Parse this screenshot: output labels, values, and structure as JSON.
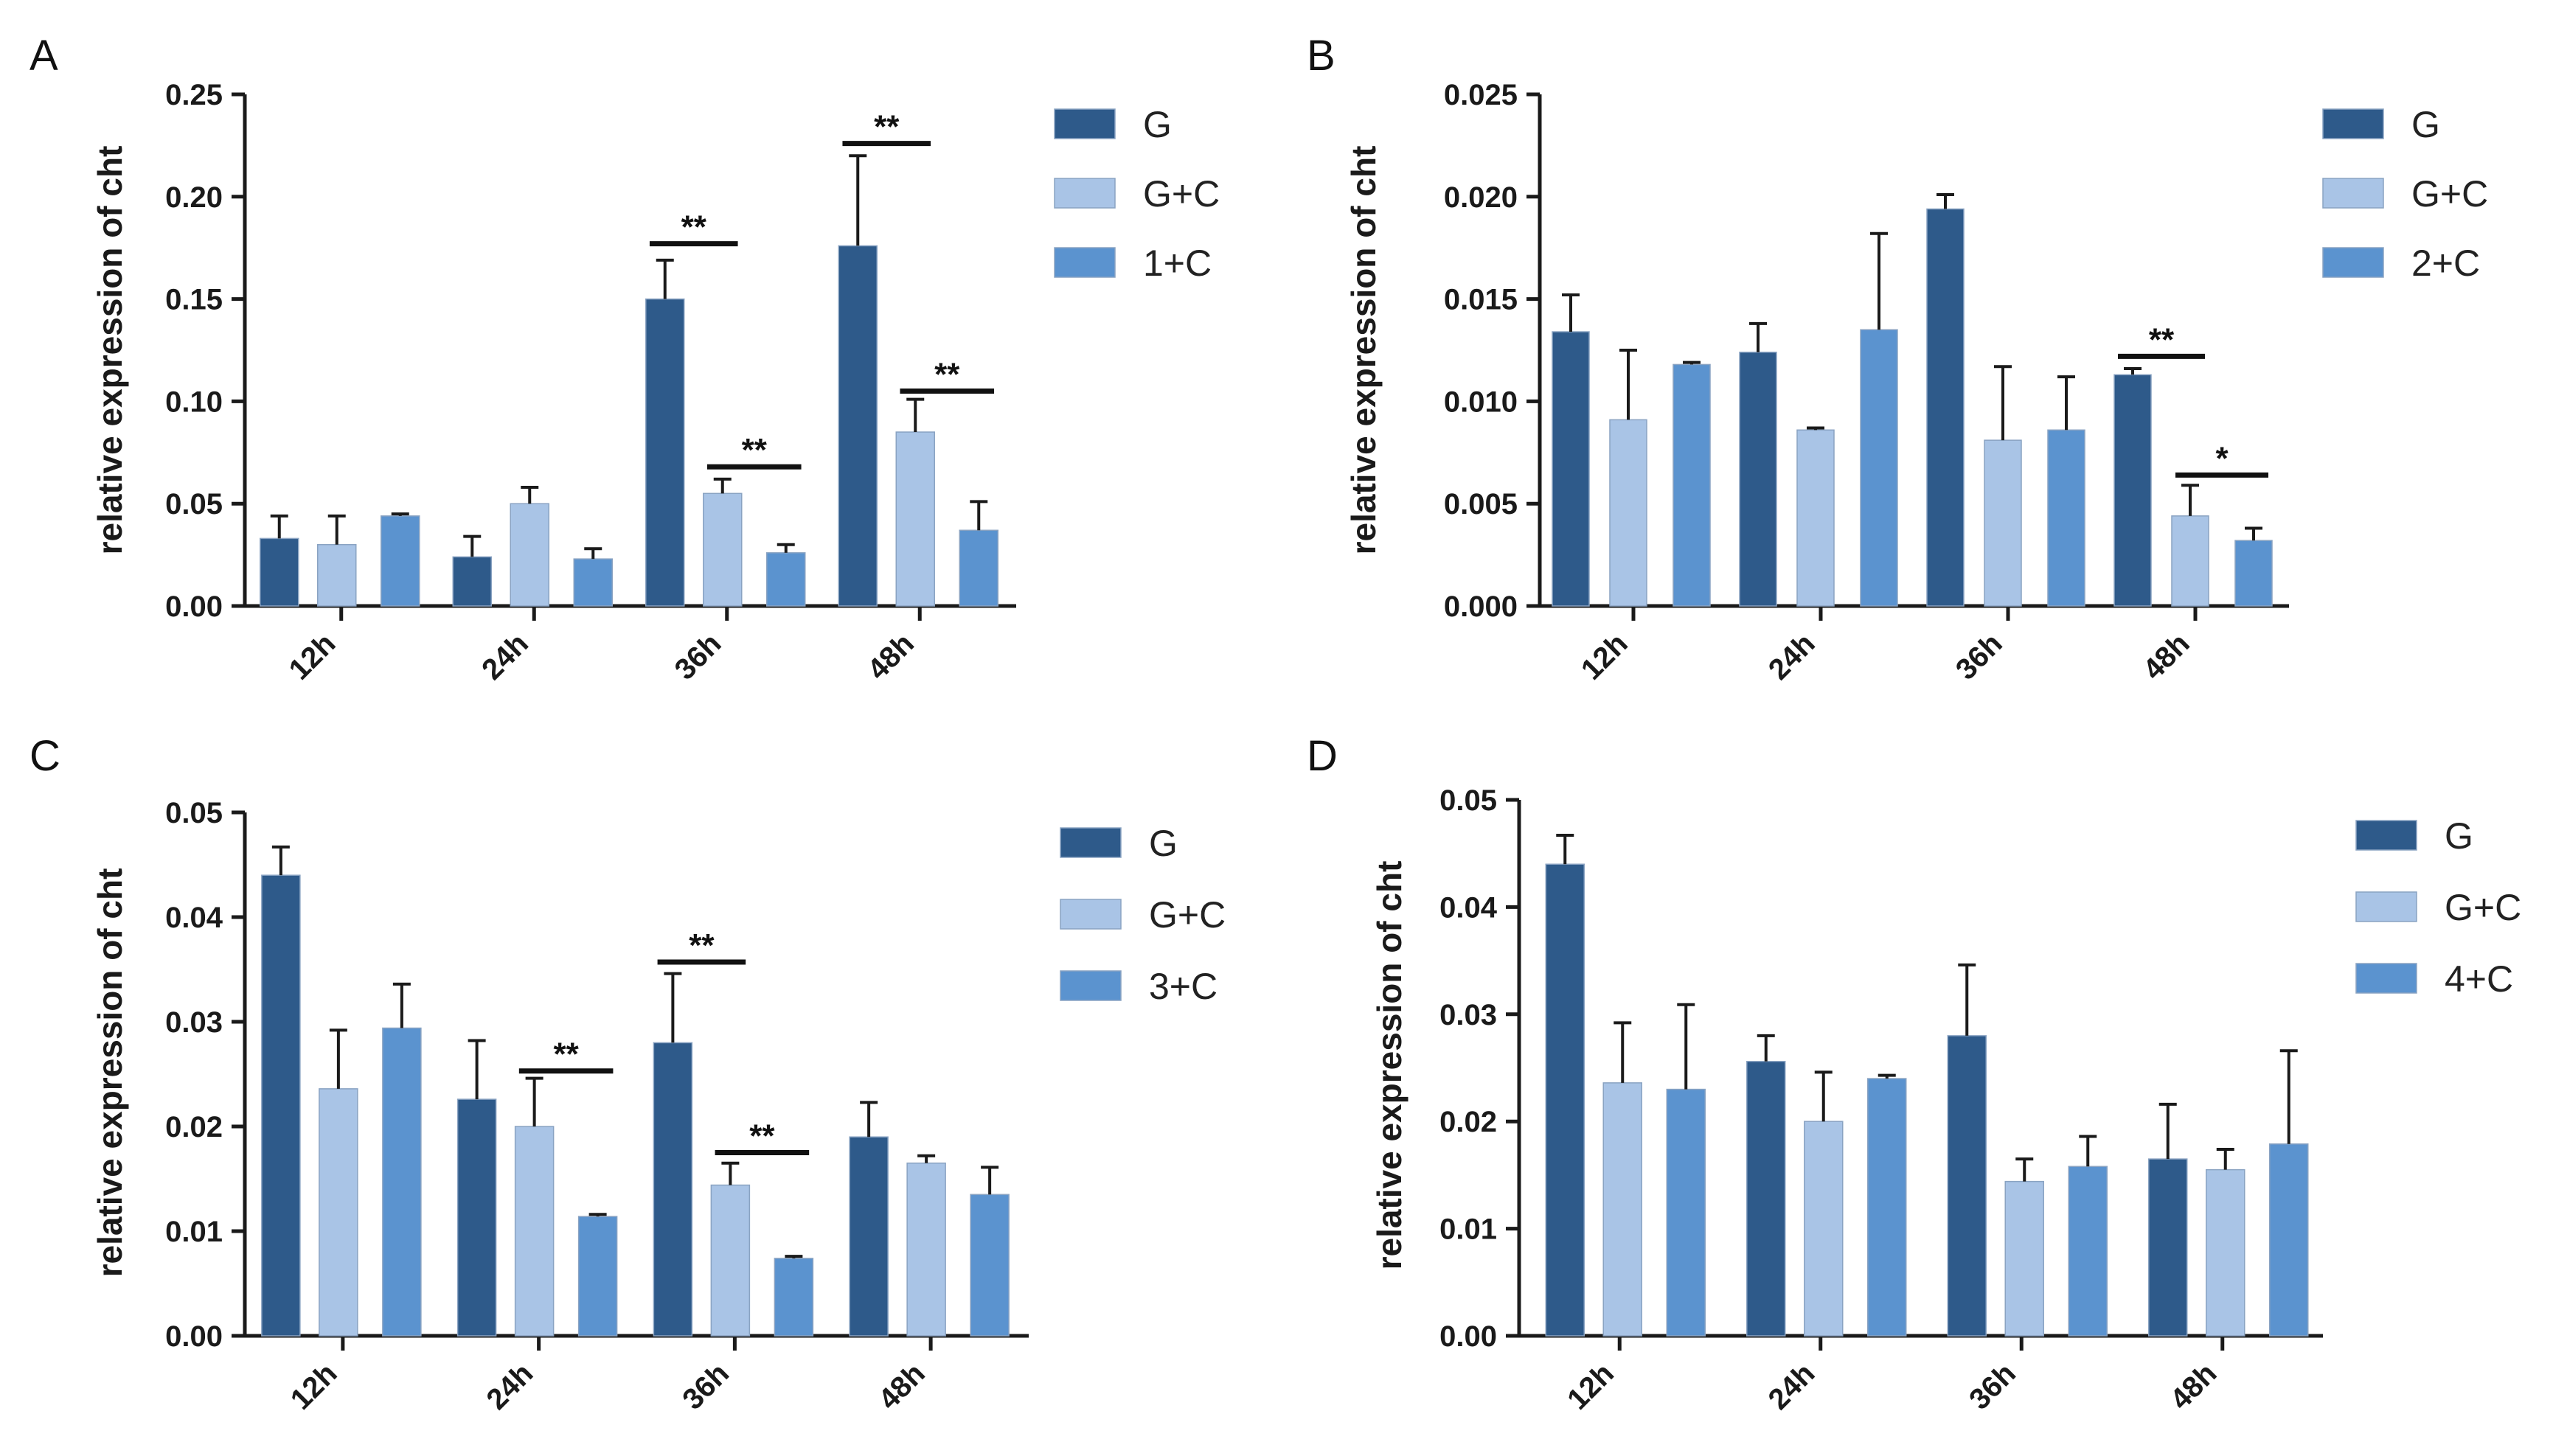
{
  "colors": {
    "G": "#2e5a8a",
    "G+C": "#a9c4e6",
    "X+C": "#5b93cf",
    "axis": "#1a1a1a"
  },
  "chart_data": [
    {
      "panel": "A",
      "type": "bar",
      "ylabel": "relative expression of cht",
      "ylim": [
        0,
        0.25
      ],
      "yticks": [
        "0.00",
        "0.05",
        "0.10",
        "0.15",
        "0.20",
        "0.25"
      ],
      "categories": [
        "12h",
        "24h",
        "36h",
        "48h"
      ],
      "series": [
        {
          "name": "G",
          "values": [
            0.033,
            0.024,
            0.15,
            0.176
          ],
          "errors": [
            0.011,
            0.01,
            0.019,
            0.044
          ]
        },
        {
          "name": "G+C",
          "values": [
            0.03,
            0.05,
            0.055,
            0.085
          ],
          "errors": [
            0.014,
            0.008,
            0.007,
            0.016
          ]
        },
        {
          "name": "1+C",
          "values": [
            0.044,
            0.023,
            0.026,
            0.037
          ],
          "errors": [
            0.001,
            0.005,
            0.004,
            0.014
          ]
        }
      ],
      "significance": [
        {
          "category": 2,
          "from": 0,
          "to": 1,
          "label": "**",
          "y": 0.177
        },
        {
          "category": 2,
          "from": 1,
          "to": 2,
          "label": "**",
          "y": 0.068
        },
        {
          "category": 3,
          "from": 0,
          "to": 1,
          "label": "**",
          "y": 0.226
        },
        {
          "category": 3,
          "from": 1,
          "to": 2,
          "label": "**",
          "y": 0.105
        }
      ]
    },
    {
      "panel": "B",
      "type": "bar",
      "ylabel": "relative expression of cht",
      "ylim": [
        0,
        0.025
      ],
      "yticks": [
        "0.000",
        "0.005",
        "0.010",
        "0.015",
        "0.020",
        "0.025"
      ],
      "categories": [
        "12h",
        "24h",
        "36h",
        "48h"
      ],
      "series": [
        {
          "name": "G",
          "values": [
            0.0134,
            0.0124,
            0.0194,
            0.0113
          ],
          "errors": [
            0.0018,
            0.0014,
            0.0007,
            0.0003
          ]
        },
        {
          "name": "G+C",
          "values": [
            0.0091,
            0.0086,
            0.0081,
            0.0044
          ],
          "errors": [
            0.0034,
            0.0001,
            0.0036,
            0.0015
          ]
        },
        {
          "name": "2+C",
          "values": [
            0.0118,
            0.0135,
            0.0086,
            0.0032
          ],
          "errors": [
            0.0001,
            0.0047,
            0.0026,
            0.0006
          ]
        }
      ],
      "significance": [
        {
          "category": 3,
          "from": 0,
          "to": 1,
          "label": "**",
          "y": 0.0122
        },
        {
          "category": 3,
          "from": 1,
          "to": 2,
          "label": "*",
          "y": 0.0064
        }
      ]
    },
    {
      "panel": "C",
      "type": "bar",
      "ylabel": "relative expression of cht",
      "ylim": [
        0,
        0.05
      ],
      "yticks": [
        "0.00",
        "0.01",
        "0.02",
        "0.03",
        "0.04",
        "0.05"
      ],
      "categories": [
        "12h",
        "24h",
        "36h",
        "48h"
      ],
      "series": [
        {
          "name": "G",
          "values": [
            0.044,
            0.0226,
            0.028,
            0.019
          ],
          "errors": [
            0.0027,
            0.0056,
            0.0066,
            0.0033
          ]
        },
        {
          "name": "G+C",
          "values": [
            0.0236,
            0.02,
            0.0144,
            0.0165
          ],
          "errors": [
            0.0056,
            0.0046,
            0.0021,
            0.0007
          ]
        },
        {
          "name": "3+C",
          "values": [
            0.0294,
            0.0114,
            0.0074,
            0.0135
          ],
          "errors": [
            0.0042,
            0.0002,
            0.0002,
            0.0026
          ]
        }
      ],
      "significance": [
        {
          "category": 1,
          "from": 1,
          "to": 2,
          "label": "**",
          "y": 0.0253
        },
        {
          "category": 2,
          "from": 0,
          "to": 1,
          "label": "**",
          "y": 0.0357
        },
        {
          "category": 2,
          "from": 1,
          "to": 2,
          "label": "**",
          "y": 0.0175
        }
      ]
    },
    {
      "panel": "D",
      "type": "bar",
      "ylabel": "relative expression of cht",
      "ylim": [
        0,
        0.05
      ],
      "yticks": [
        "0.00",
        "0.01",
        "0.02",
        "0.03",
        "0.04",
        "0.05"
      ],
      "categories": [
        "12h",
        "24h",
        "36h",
        "48h"
      ],
      "series": [
        {
          "name": "G",
          "values": [
            0.044,
            0.0256,
            0.028,
            0.0165
          ],
          "errors": [
            0.0027,
            0.0024,
            0.0066,
            0.0051
          ]
        },
        {
          "name": "G+C",
          "values": [
            0.0236,
            0.02,
            0.0144,
            0.0155
          ],
          "errors": [
            0.0056,
            0.0046,
            0.0021,
            0.0019
          ]
        },
        {
          "name": "4+C",
          "values": [
            0.023,
            0.024,
            0.0158,
            0.0179
          ],
          "errors": [
            0.0079,
            0.0003,
            0.0028,
            0.0087
          ]
        }
      ],
      "significance": []
    }
  ]
}
